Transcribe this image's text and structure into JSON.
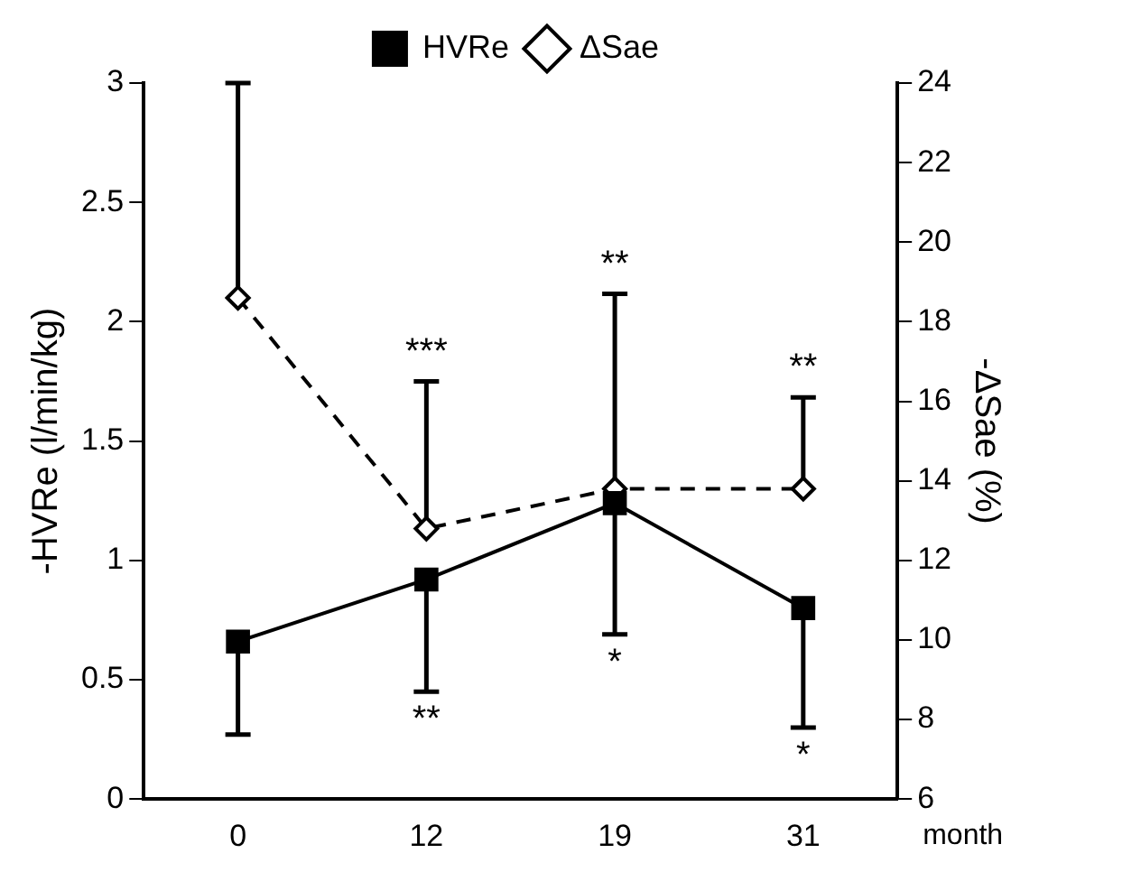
{
  "chart_data": {
    "type": "line",
    "xlabel": "month",
    "ylabel": "-HVRe (l/min/kg)",
    "y2label": "-ΔSae (%)",
    "categories": [
      "0",
      "12",
      "19",
      "31"
    ],
    "series": [
      {
        "name": "HVRe",
        "color": "#000000",
        "marker": "square",
        "line_style": "solid",
        "values": [
          0.66,
          0.92,
          1.24,
          0.8
        ],
        "errors": [
          [
            0.27,
            0.66
          ],
          [
            0.45,
            0.92
          ],
          [
            0.69,
            1.24
          ],
          [
            0.3,
            0.8
          ]
        ]
      },
      {
        "name": "ΔSae",
        "color": "#000000",
        "marker": "diamond",
        "line_style": "dashed",
        "axis": "y2",
        "values": [
          18.6,
          12.8,
          13.8,
          13.8
        ],
        "errors": [
          [
            18.6,
            24
          ],
          [
            12.8,
            16.5
          ],
          [
            13.8,
            18.7
          ],
          [
            13.8,
            16.1
          ]
        ]
      }
    ],
    "ylim": [
      0,
      3
    ],
    "yticks": [
      0,
      0.5,
      1,
      1.5,
      2,
      2.5,
      3
    ],
    "y2lim": [
      6,
      24
    ],
    "y2ticks": [
      6,
      8,
      10,
      12,
      14,
      16,
      18,
      20,
      22,
      24
    ],
    "grid": false,
    "legend": "top",
    "annotations": [
      "***",
      "**",
      "**",
      "**",
      "*",
      "*"
    ]
  }
}
